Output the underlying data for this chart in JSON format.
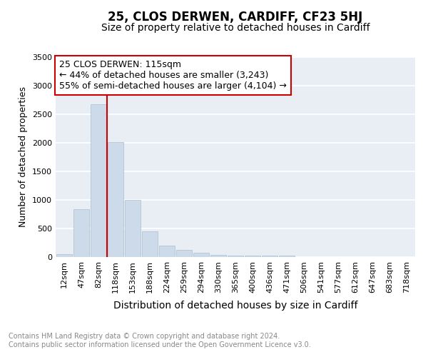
{
  "title": "25, CLOS DERWEN, CARDIFF, CF23 5HJ",
  "subtitle": "Size of property relative to detached houses in Cardiff",
  "xlabel": "Distribution of detached houses by size in Cardiff",
  "ylabel": "Number of detached properties",
  "categories": [
    "12sqm",
    "47sqm",
    "82sqm",
    "118sqm",
    "153sqm",
    "188sqm",
    "224sqm",
    "259sqm",
    "294sqm",
    "330sqm",
    "365sqm",
    "400sqm",
    "436sqm",
    "471sqm",
    "506sqm",
    "541sqm",
    "577sqm",
    "612sqm",
    "647sqm",
    "683sqm",
    "718sqm"
  ],
  "values": [
    55,
    840,
    2670,
    2010,
    1000,
    450,
    200,
    130,
    75,
    40,
    30,
    30,
    20,
    20,
    5,
    3,
    2,
    1,
    1,
    0,
    0
  ],
  "bar_color": "#ccdaea",
  "bar_edge_color": "#aabfcf",
  "vline_color": "#cc0000",
  "vline_index": 3,
  "annotation_box_text": "25 CLOS DERWEN: 115sqm\n← 44% of detached houses are smaller (3,243)\n55% of semi-detached houses are larger (4,104) →",
  "annotation_box_color": "#cc0000",
  "ylim": [
    0,
    3500
  ],
  "yticks": [
    0,
    500,
    1000,
    1500,
    2000,
    2500,
    3000,
    3500
  ],
  "footer_text": "Contains HM Land Registry data © Crown copyright and database right 2024.\nContains public sector information licensed under the Open Government Licence v3.0.",
  "background_color": "#e8eef4",
  "grid_color": "#ffffff",
  "title_fontsize": 12,
  "subtitle_fontsize": 10,
  "xlabel_fontsize": 10,
  "ylabel_fontsize": 9,
  "tick_fontsize": 8,
  "annotation_fontsize": 9,
  "footer_fontsize": 7
}
